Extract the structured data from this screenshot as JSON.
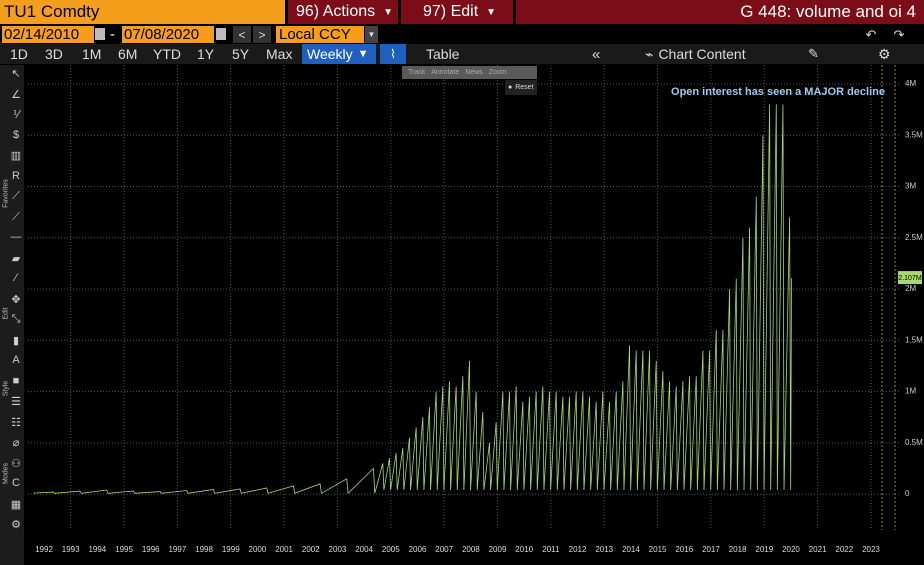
{
  "header": {
    "ticker": "TU1 Comdty",
    "actions": "96) Actions",
    "edit": "97) Edit",
    "title": "G 448: volume and oi 4"
  },
  "dates": {
    "start": "02/14/2010",
    "separator": "-",
    "end": "07/08/2020",
    "currency": "Local CCY"
  },
  "toolbar": {
    "periods": [
      "1D",
      "3D",
      "1M",
      "6M",
      "YTD",
      "1Y",
      "5Y",
      "Max"
    ],
    "frequency": "Weekly",
    "table": "Table",
    "chart_content": "Chart Content"
  },
  "sidebar": [
    "Favorites",
    "Edit",
    "Style",
    "Modes"
  ],
  "chart_menu": {
    "items": [
      "Track",
      "Annotate",
      "News",
      "Zoom"
    ],
    "reset": "Reset"
  },
  "chart_data": {
    "type": "line",
    "annotation": "Open interest has seen a MAJOR decline",
    "xlim": [
      1991.9,
      2024.4
    ],
    "xticks": [
      {
        "value": 1992.5,
        "label": "1992"
      },
      {
        "value": 1993.5,
        "label": "1993"
      },
      {
        "value": 1994.5,
        "label": "1994"
      },
      {
        "value": 1995.5,
        "label": "1995"
      },
      {
        "value": 1996.5,
        "label": "1996"
      },
      {
        "value": 1997.5,
        "label": "1997"
      },
      {
        "value": 1998.5,
        "label": "1998"
      },
      {
        "value": 1999.5,
        "label": "1999"
      },
      {
        "value": 2000.5,
        "label": "2000"
      },
      {
        "value": 2001.5,
        "label": "2001"
      },
      {
        "value": 2002.5,
        "label": "2002"
      },
      {
        "value": 2003.5,
        "label": "2003"
      },
      {
        "value": 2004.5,
        "label": "2004"
      },
      {
        "value": 2005.5,
        "label": "2005"
      },
      {
        "value": 2006.5,
        "label": "2006"
      },
      {
        "value": 2007.5,
        "label": "2007"
      },
      {
        "value": 2008.5,
        "label": "2008"
      },
      {
        "value": 2009.5,
        "label": "2009"
      },
      {
        "value": 2010.5,
        "label": "2010"
      },
      {
        "value": 2011.5,
        "label": "2011"
      },
      {
        "value": 2012.5,
        "label": "2012"
      },
      {
        "value": 2013.5,
        "label": "2013"
      },
      {
        "value": 2014.5,
        "label": "2014"
      },
      {
        "value": 2015.5,
        "label": "2015"
      },
      {
        "value": 2016.5,
        "label": "2016"
      },
      {
        "value": 2017.5,
        "label": "2017"
      },
      {
        "value": 2018.5,
        "label": "2018"
      },
      {
        "value": 2019.5,
        "label": "2019"
      },
      {
        "value": 2020.5,
        "label": "2020"
      },
      {
        "value": 2021.5,
        "label": "2021"
      },
      {
        "value": 2022.5,
        "label": "2022"
      },
      {
        "value": 2023.5,
        "label": "2023"
      }
    ],
    "ylim": [
      -350000,
      4185000
    ],
    "yticks": [
      0,
      {
        "value": 500000,
        "label": "0.5M"
      },
      {
        "value": 1000000,
        "label": "1M"
      },
      {
        "value": 1500000,
        "label": "1.5M"
      },
      {
        "value": 2000000,
        "label": "2M"
      },
      {
        "value": 2500000,
        "label": "2.5M"
      },
      {
        "value": 3000000,
        "label": "3M"
      },
      {
        "value": 3500000,
        "label": "3.5M"
      },
      {
        "value": 4000000,
        "label": "4M"
      }
    ],
    "grid": true,
    "series": [
      {
        "color": "#a8d86e",
        "x": [
          1992.1,
          1992.85,
          1992.9,
          1993.85,
          1993.9,
          1994.85,
          1994.9,
          1995.85,
          1995.9,
          1996.85,
          1996.9,
          1997.85,
          1997.9,
          1998.85,
          1998.9,
          1999.85,
          1999.9,
          2000.85,
          2000.9,
          2001.85,
          2001.9,
          2002.85,
          2002.9,
          2003.85,
          2003.9,
          2004.85,
          2004.9,
          2005.2,
          2005.24,
          2005.45,
          2005.49,
          2005.7,
          2005.74,
          2005.95,
          2005.99,
          2006.2,
          2006.24,
          2006.45,
          2006.49,
          2006.7,
          2006.74,
          2006.95,
          2006.99,
          2007.2,
          2007.24,
          2007.45,
          2007.49,
          2007.7,
          2007.74,
          2007.95,
          2007.99,
          2008.2,
          2008.24,
          2008.45,
          2008.49,
          2008.7,
          2008.74,
          2008.95,
          2008.99,
          2009.2,
          2009.24,
          2009.45,
          2009.49,
          2009.7,
          2009.74,
          2009.95,
          2009.99,
          2010.2,
          2010.24,
          2010.45,
          2010.49,
          2010.7,
          2010.74,
          2010.95,
          2010.99,
          2011.2,
          2011.24,
          2011.45,
          2011.49,
          2011.7,
          2011.74,
          2011.95,
          2011.99,
          2012.2,
          2012.24,
          2012.45,
          2012.49,
          2012.7,
          2012.74,
          2012.95,
          2012.99,
          2013.2,
          2013.24,
          2013.45,
          2013.49,
          2013.7,
          2013.74,
          2013.95,
          2013.99,
          2014.2,
          2014.24,
          2014.45,
          2014.49,
          2014.7,
          2014.74,
          2014.95,
          2014.99,
          2015.2,
          2015.24,
          2015.45,
          2015.49,
          2015.7,
          2015.74,
          2015.95,
          2015.99,
          2016.2,
          2016.24,
          2016.45,
          2016.49,
          2016.7,
          2016.74,
          2016.95,
          2016.99,
          2017.2,
          2017.24,
          2017.45,
          2017.49,
          2017.7,
          2017.74,
          2017.95,
          2017.99,
          2018.2,
          2018.24,
          2018.45,
          2018.49,
          2018.7,
          2018.74,
          2018.95,
          2018.99,
          2019.2,
          2019.24,
          2019.45,
          2019.49,
          2019.7,
          2019.74,
          2019.95,
          2019.99,
          2020.2,
          2020.24,
          2020.45,
          2020.49,
          2020.52
        ],
        "values": [
          10000,
          20000,
          8000,
          30000,
          8000,
          40000,
          8000,
          30000,
          8000,
          25000,
          8000,
          35000,
          8000,
          45000,
          8000,
          50000,
          8000,
          60000,
          8000,
          80000,
          8000,
          100000,
          8000,
          150000,
          8000,
          250000,
          8000,
          300000,
          40000,
          350000,
          40000,
          400000,
          40000,
          450000,
          40000,
          550000,
          40000,
          650000,
          40000,
          750000,
          40000,
          850000,
          40000,
          1000000,
          40000,
          1050000,
          40000,
          1100000,
          40000,
          1050000,
          40000,
          1150000,
          40000,
          1300000,
          40000,
          1000000,
          40000,
          800000,
          40000,
          500000,
          40000,
          700000,
          40000,
          1000000,
          40000,
          1000000,
          40000,
          1050000,
          40000,
          900000,
          40000,
          950000,
          40000,
          1000000,
          40000,
          1050000,
          40000,
          1000000,
          40000,
          1000000,
          40000,
          950000,
          40000,
          950000,
          40000,
          1000000,
          40000,
          1000000,
          40000,
          950000,
          40000,
          900000,
          40000,
          1000000,
          40000,
          900000,
          40000,
          1000000,
          40000,
          1100000,
          40000,
          1450000,
          40000,
          1400000,
          40000,
          1400000,
          40000,
          1400000,
          40000,
          1300000,
          40000,
          1200000,
          40000,
          1100000,
          40000,
          1050000,
          40000,
          1100000,
          40000,
          1150000,
          40000,
          1150000,
          40000,
          1400000,
          40000,
          1400000,
          40000,
          1600000,
          40000,
          1600000,
          40000,
          2000000,
          40000,
          2100000,
          40000,
          2500000,
          40000,
          2600000,
          40000,
          2900000,
          40000,
          3500000,
          40000,
          3800000,
          40000,
          3800000,
          40000,
          3800000,
          40000,
          2700000,
          40000,
          2107000
        ],
        "last_value": 2107000,
        "last_label": "2.107M"
      }
    ]
  }
}
